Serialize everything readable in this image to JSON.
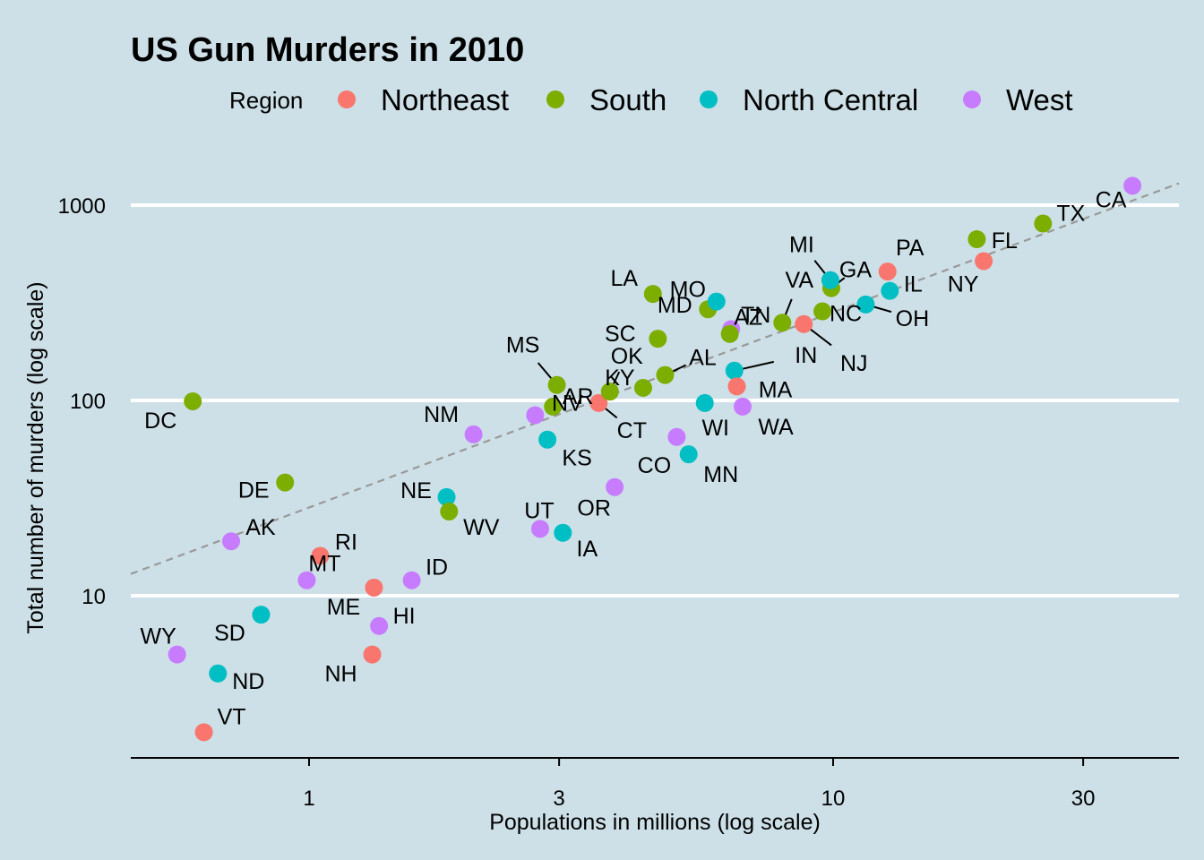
{
  "chart_data": {
    "type": "scatter",
    "title": "US Gun Murders in 2010",
    "xlabel": "Populations in millions (log scale)",
    "ylabel": "Total number of murders (log scale)",
    "x_scale": "log10",
    "y_scale": "log10",
    "x_ticks": [
      1,
      3,
      10,
      30
    ],
    "y_ticks": [
      10,
      100,
      1000
    ],
    "grid": "horizontal major lines only",
    "legend": {
      "title": "Region",
      "placement": "top",
      "entries": [
        {
          "name": "Northeast",
          "color": "#f8766d"
        },
        {
          "name": "South",
          "color": "#7cae00"
        },
        {
          "name": "North Central",
          "color": "#00bfc4"
        },
        {
          "name": "West",
          "color": "#c77cff"
        }
      ]
    },
    "reference_line": {
      "style": "dashed",
      "color": "#999999",
      "slope": 1,
      "murder_rate_per_million": 28.3
    },
    "points": [
      {
        "label": "AK",
        "region": "West",
        "x": 0.71,
        "y": 19
      },
      {
        "label": "AL",
        "region": "South",
        "x": 4.78,
        "y": 135
      },
      {
        "label": "AR",
        "region": "South",
        "x": 2.92,
        "y": 93
      },
      {
        "label": "AZ",
        "region": "West",
        "x": 6.39,
        "y": 232
      },
      {
        "label": "CA",
        "region": "West",
        "x": 37.25,
        "y": 1257
      },
      {
        "label": "CO",
        "region": "West",
        "x": 5.03,
        "y": 65
      },
      {
        "label": "CT",
        "region": "Northeast",
        "x": 3.57,
        "y": 97
      },
      {
        "label": "DC",
        "region": "South",
        "x": 0.6,
        "y": 99
      },
      {
        "label": "DE",
        "region": "South",
        "x": 0.9,
        "y": 38
      },
      {
        "label": "FL",
        "region": "South",
        "x": 18.8,
        "y": 669
      },
      {
        "label": "GA",
        "region": "South",
        "x": 9.92,
        "y": 376
      },
      {
        "label": "HI",
        "region": "West",
        "x": 1.36,
        "y": 7
      },
      {
        "label": "IA",
        "region": "North Central",
        "x": 3.05,
        "y": 21
      },
      {
        "label": "ID",
        "region": "West",
        "x": 1.57,
        "y": 12
      },
      {
        "label": "IL",
        "region": "North Central",
        "x": 12.83,
        "y": 364
      },
      {
        "label": "IN",
        "region": "North Central",
        "x": 6.48,
        "y": 142
      },
      {
        "label": "KS",
        "region": "North Central",
        "x": 2.85,
        "y": 63
      },
      {
        "label": "KY",
        "region": "South",
        "x": 4.34,
        "y": 116
      },
      {
        "label": "LA",
        "region": "South",
        "x": 4.53,
        "y": 351
      },
      {
        "label": "MA",
        "region": "Northeast",
        "x": 6.55,
        "y": 118
      },
      {
        "label": "MD",
        "region": "South",
        "x": 5.77,
        "y": 293
      },
      {
        "label": "ME",
        "region": "Northeast",
        "x": 1.33,
        "y": 11
      },
      {
        "label": "MI",
        "region": "North Central",
        "x": 9.88,
        "y": 413
      },
      {
        "label": "MN",
        "region": "North Central",
        "x": 5.3,
        "y": 53
      },
      {
        "label": "MO",
        "region": "North Central",
        "x": 5.99,
        "y": 321
      },
      {
        "label": "MS",
        "region": "South",
        "x": 2.97,
        "y": 120
      },
      {
        "label": "MT",
        "region": "West",
        "x": 0.99,
        "y": 12
      },
      {
        "label": "NC",
        "region": "South",
        "x": 9.54,
        "y": 286
      },
      {
        "label": "ND",
        "region": "North Central",
        "x": 0.67,
        "y": 4
      },
      {
        "label": "NE",
        "region": "North Central",
        "x": 1.83,
        "y": 32
      },
      {
        "label": "NH",
        "region": "Northeast",
        "x": 1.32,
        "y": 5
      },
      {
        "label": "NJ",
        "region": "Northeast",
        "x": 8.79,
        "y": 246
      },
      {
        "label": "NM",
        "region": "West",
        "x": 2.06,
        "y": 67
      },
      {
        "label": "NV",
        "region": "West",
        "x": 2.7,
        "y": 84
      },
      {
        "label": "NY",
        "region": "Northeast",
        "x": 19.38,
        "y": 517
      },
      {
        "label": "OH",
        "region": "North Central",
        "x": 11.54,
        "y": 310
      },
      {
        "label": "OK",
        "region": "South",
        "x": 3.75,
        "y": 111
      },
      {
        "label": "OR",
        "region": "West",
        "x": 3.83,
        "y": 36
      },
      {
        "label": "PA",
        "region": "Northeast",
        "x": 12.7,
        "y": 457
      },
      {
        "label": "RI",
        "region": "Northeast",
        "x": 1.05,
        "y": 16
      },
      {
        "label": "SC",
        "region": "South",
        "x": 4.63,
        "y": 207
      },
      {
        "label": "SD",
        "region": "North Central",
        "x": 0.81,
        "y": 8
      },
      {
        "label": "TN",
        "region": "South",
        "x": 6.35,
        "y": 219
      },
      {
        "label": "TX",
        "region": "South",
        "x": 25.15,
        "y": 805
      },
      {
        "label": "UT",
        "region": "West",
        "x": 2.76,
        "y": 22
      },
      {
        "label": "VA",
        "region": "South",
        "x": 8.0,
        "y": 250
      },
      {
        "label": "VT",
        "region": "Northeast",
        "x": 0.63,
        "y": 2
      },
      {
        "label": "WA",
        "region": "West",
        "x": 6.72,
        "y": 93
      },
      {
        "label": "WI",
        "region": "North Central",
        "x": 5.69,
        "y": 97
      },
      {
        "label": "WV",
        "region": "South",
        "x": 1.85,
        "y": 27
      },
      {
        "label": "WY",
        "region": "West",
        "x": 0.56,
        "y": 5
      }
    ]
  }
}
